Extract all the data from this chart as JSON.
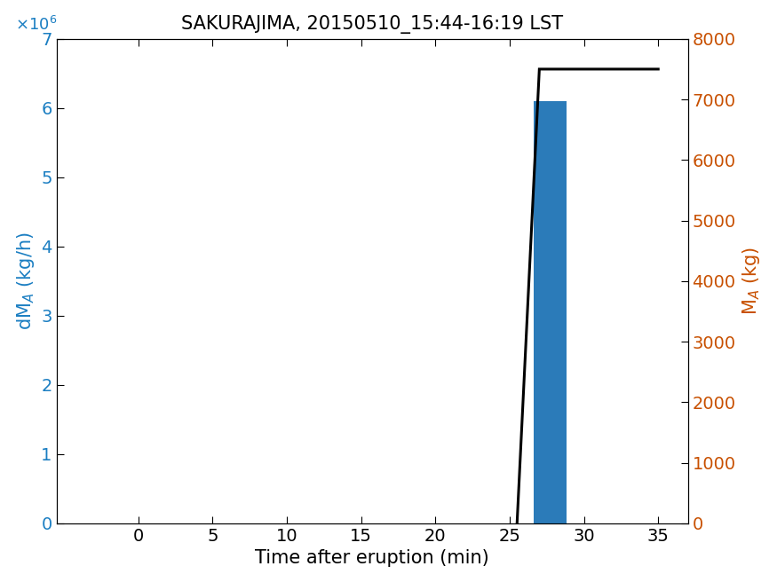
{
  "title": "SAKURAJIMA, 20150510_15:44-16:19 LST",
  "xlabel": "Time after eruption (min)",
  "left_color": "#1B7EC2",
  "right_color": "#C85000",
  "bar_x": 27.75,
  "bar_width": 2.2,
  "bar_height": 6100000.0,
  "bar_color": "#2B7BB9",
  "xlim": [
    -5.5,
    37
  ],
  "xticks": [
    0,
    5,
    10,
    15,
    20,
    25,
    30,
    35
  ],
  "ylim_left": [
    0,
    7000000.0
  ],
  "yticks_left": [
    0,
    1000000.0,
    2000000.0,
    3000000.0,
    4000000.0,
    5000000.0,
    6000000.0,
    7000000.0
  ],
  "ylim_right": [
    0,
    8000
  ],
  "yticks_right": [
    0,
    1000,
    2000,
    3000,
    4000,
    5000,
    6000,
    7000,
    8000
  ],
  "line_x": [
    25.5,
    27.0,
    35.0
  ],
  "line_y": [
    0,
    7500,
    7500
  ],
  "line_color": "black",
  "line_width": 2.2,
  "tick_fontsize": 14,
  "label_fontsize": 15,
  "title_fontsize": 15
}
